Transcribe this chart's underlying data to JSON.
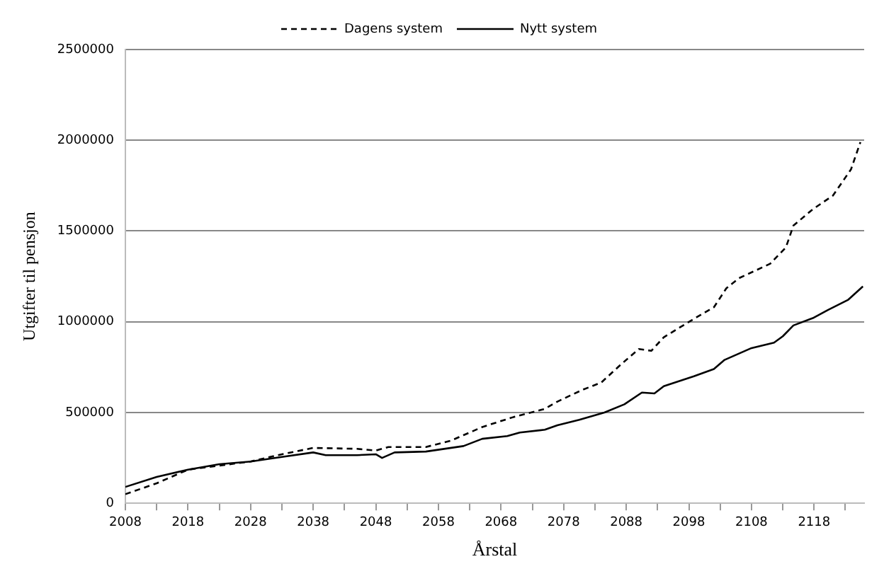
{
  "chart_data": {
    "type": "line",
    "xlabel": "Årstal",
    "ylabel": "Utgifter til pensjon",
    "xlim": [
      2008,
      2126
    ],
    "xticks": [
      2008,
      {
        "value": 2013,
        "label": null
      },
      2018,
      {
        "value": 2023,
        "label": null
      },
      2028,
      {
        "value": 2033,
        "label": null
      },
      2038,
      {
        "value": 2043,
        "label": null
      },
      2048,
      {
        "value": 2053,
        "label": null
      },
      2058,
      {
        "value": 2063,
        "label": null
      },
      2068,
      {
        "value": 2073,
        "label": null
      },
      2078,
      {
        "value": 2083,
        "label": null
      },
      2088,
      {
        "value": 2093,
        "label": null
      },
      2098,
      {
        "value": 2103,
        "label": null
      },
      2108,
      {
        "value": 2113,
        "label": null
      },
      2118,
      {
        "value": 2123,
        "label": null
      }
    ],
    "ylim": [
      0,
      2500000
    ],
    "yticks": [
      0,
      500000,
      1000000,
      1500000,
      2000000,
      2500000
    ],
    "grid": "y",
    "legend": "top",
    "marker": "none",
    "series": [
      {
        "name": "Dagens system",
        "color": "#000000",
        "line_style": "dashed",
        "x": [
          2008,
          2013,
          2018,
          2028,
          2033,
          2038,
          2045,
          2048,
          2050,
          2056,
          2060,
          2062,
          2065,
          2070,
          2075,
          2077,
          2081,
          2084,
          2087,
          2090,
          2092,
          2094,
          2099,
          2102,
          2104,
          2106,
          2111,
          2113.5,
          2114.7,
          2117.8,
          2121,
          2123.9,
          2125.4
        ],
        "values": [
          50000,
          110000,
          185000,
          230000,
          270000,
          305000,
          300000,
          290000,
          310000,
          310000,
          345000,
          375000,
          420000,
          475000,
          520000,
          560000,
          625000,
          665000,
          760000,
          850000,
          840000,
          915000,
          1020000,
          1080000,
          1185000,
          1240000,
          1320000,
          1410000,
          1530000,
          1620000,
          1695000,
          1840000,
          1990000
        ]
      },
      {
        "name": "Nytt system",
        "color": "#000000",
        "line_style": "solid",
        "x": [
          2008,
          2013,
          2018,
          2023,
          2028,
          2033,
          2038,
          2040,
          2045,
          2048,
          2049,
          2051,
          2056,
          2062,
          2065,
          2069,
          2071,
          2075,
          2077,
          2080.5,
          2084.5,
          2087.7,
          2090.5,
          2092.5,
          2094,
          2098.8,
          2102,
          2103.7,
          2108,
          2111.6,
          2113,
          2114.7,
          2117.8,
          2120.2,
          2123.4,
          2125.8
        ],
        "values": [
          90000,
          145000,
          185000,
          215000,
          230000,
          255000,
          280000,
          265000,
          265000,
          270000,
          250000,
          280000,
          285000,
          315000,
          355000,
          370000,
          390000,
          405000,
          430000,
          460000,
          500000,
          545000,
          610000,
          605000,
          645000,
          700000,
          740000,
          790000,
          855000,
          885000,
          920000,
          980000,
          1020000,
          1065000,
          1120000,
          1195000
        ]
      }
    ]
  }
}
